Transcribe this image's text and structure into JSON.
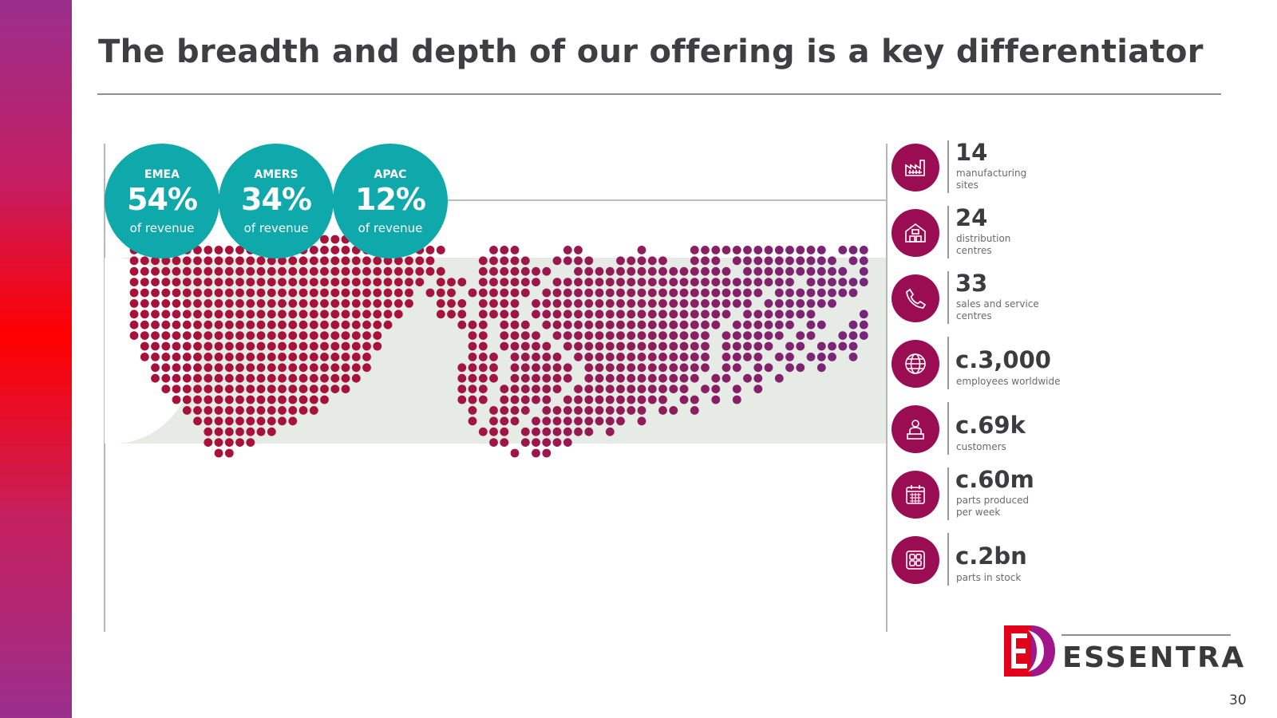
{
  "slide": {
    "title": "The breadth and depth of our offering is a key differentiator",
    "page_number": "30"
  },
  "colors": {
    "accent_teal": "#0fa8ab",
    "icon_magenta": "#9b0d52",
    "map_red": "#a8123a",
    "map_purple": "#7d2679"
  },
  "regions": [
    {
      "name": "EMEA",
      "value": "54%",
      "label": "of revenue"
    },
    {
      "name": "AMERS",
      "value": "34%",
      "label": "of revenue"
    },
    {
      "name": "APAC",
      "value": "12%",
      "label": "of revenue"
    }
  ],
  "stats": [
    {
      "icon": "factory-icon",
      "value": "14",
      "label": "manufacturing\nsites"
    },
    {
      "icon": "warehouse-icon",
      "value": "24",
      "label": "distribution\ncentres"
    },
    {
      "icon": "phone-icon",
      "value": "33",
      "label": "sales and service\ncentres"
    },
    {
      "icon": "globe-icon",
      "value": "c.3,000",
      "label": "employees worldwide"
    },
    {
      "icon": "customer-icon",
      "value": "c.69k",
      "label": "customers"
    },
    {
      "icon": "calendar-icon",
      "value": "c.60m",
      "label": "parts produced\nper week"
    },
    {
      "icon": "parts-grid-icon",
      "value": "c.2bn",
      "label": "parts in stock"
    }
  ],
  "logo": {
    "text": "ESSENTRA"
  }
}
